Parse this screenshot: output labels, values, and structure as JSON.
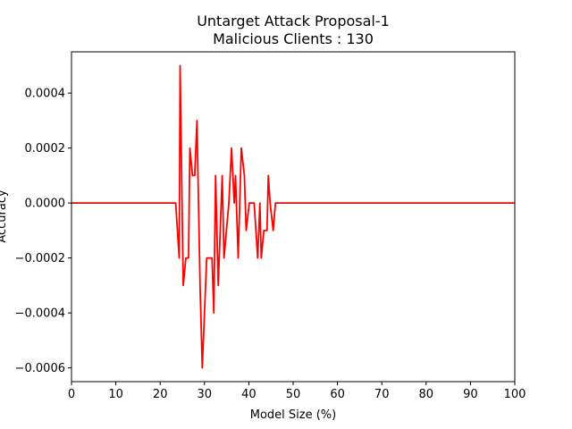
{
  "chart_data": {
    "type": "line",
    "title_line1": "Untarget Attack Proposal-1",
    "title_line2": "Malicious Clients : 130",
    "xlabel": "Model Size (%)",
    "ylabel": "Accuracy",
    "xlim": [
      0,
      100
    ],
    "ylim": [
      -0.00065,
      0.00055
    ],
    "xticks": [
      0,
      10,
      20,
      30,
      40,
      50,
      60,
      70,
      80,
      90,
      100
    ],
    "yticks": [
      -0.0006,
      -0.0004,
      -0.0002,
      0.0,
      0.0002,
      0.0004
    ],
    "ytick_labels": [
      "−0.0006",
      "−0.0004",
      "−0.0002",
      "0.0000",
      "0.0002",
      "0.0004"
    ],
    "grid": false,
    "color": "#ff0000",
    "series": [
      {
        "name": "",
        "points": [
          [
            0,
            0
          ],
          [
            23.5,
            0
          ],
          [
            24.3,
            -0.0002
          ],
          [
            24.5,
            0.0005
          ],
          [
            25.2,
            -0.0003
          ],
          [
            25.8,
            -0.0002
          ],
          [
            26.4,
            -0.0002
          ],
          [
            26.7,
            0.0002
          ],
          [
            27.3,
            0.0001
          ],
          [
            27.8,
            0.0001
          ],
          [
            28.3,
            0.0003
          ],
          [
            29.0,
            -0.0003
          ],
          [
            29.5,
            -0.0006
          ],
          [
            30.5,
            -0.0002
          ],
          [
            31.7,
            -0.0002
          ],
          [
            32.1,
            -0.0004
          ],
          [
            32.5,
            0.0001
          ],
          [
            33.1,
            -0.0003
          ],
          [
            34.0,
            0.0001
          ],
          [
            34.4,
            -0.0002
          ],
          [
            35.5,
            0.0
          ],
          [
            36.1,
            0.0002
          ],
          [
            36.7,
            0.0
          ],
          [
            37.0,
            0.0001
          ],
          [
            37.6,
            -0.0002
          ],
          [
            38.3,
            0.0002
          ],
          [
            39.0,
            0.0001
          ],
          [
            39.4,
            -0.0001
          ],
          [
            40.1,
            0.0
          ],
          [
            41.2,
            0.0
          ],
          [
            42.0,
            -0.0002
          ],
          [
            42.5,
            0.0
          ],
          [
            42.8,
            -0.0002
          ],
          [
            43.4,
            -0.0001
          ],
          [
            44.1,
            -0.0001
          ],
          [
            44.4,
            0.0001
          ],
          [
            44.8,
            0.0
          ],
          [
            45.5,
            -0.0001
          ],
          [
            46.0,
            0.0
          ],
          [
            100,
            0
          ]
        ]
      }
    ]
  }
}
